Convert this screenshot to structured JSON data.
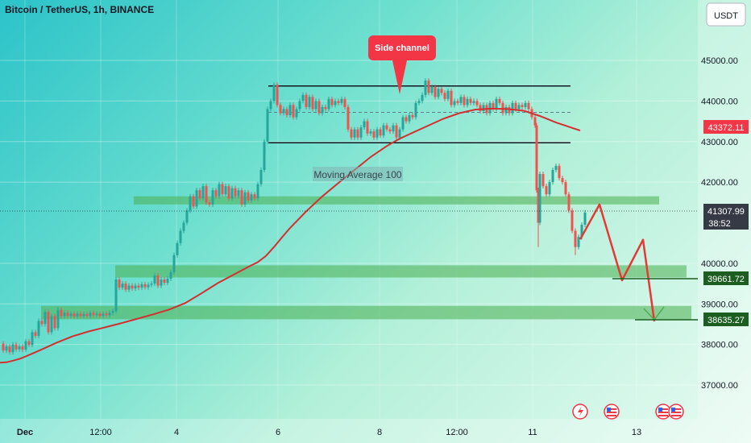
{
  "header": {
    "title": "Bitcoin / TetherUS, 1h, BINANCE",
    "currency_button": "USDT"
  },
  "chart_data": {
    "type": "candlestick",
    "title": "Bitcoin / TetherUS, 1h, BINANCE",
    "ylim": [
      36600,
      46300
    ],
    "y_ticks": [
      "45000.00",
      "44000.00",
      "43000.00",
      "42000.00",
      "40000.00",
      "39000.00",
      "38000.00",
      "37000.00"
    ],
    "x_ticks": [
      "Dec",
      "12:00",
      "4",
      "6",
      "8",
      "12:00",
      "11",
      "13"
    ],
    "series": [
      {
        "name": "Moving Average 100",
        "values": [
          [
            0,
            37550
          ],
          [
            8,
            37560
          ],
          [
            16,
            37600
          ],
          [
            25,
            37650
          ],
          [
            35,
            37730
          ],
          [
            50,
            37860
          ],
          [
            70,
            38040
          ],
          [
            90,
            38200
          ],
          [
            110,
            38320
          ],
          [
            130,
            38420
          ],
          [
            150,
            38520
          ],
          [
            170,
            38630
          ],
          [
            190,
            38740
          ],
          [
            210,
            38860
          ],
          [
            230,
            39020
          ],
          [
            250,
            39260
          ],
          [
            270,
            39510
          ],
          [
            290,
            39720
          ],
          [
            310,
            39930
          ],
          [
            320,
            40030
          ],
          [
            330,
            40180
          ],
          [
            340,
            40400
          ],
          [
            350,
            40640
          ],
          [
            360,
            40870
          ],
          [
            380,
            41280
          ],
          [
            400,
            41650
          ],
          [
            420,
            41980
          ],
          [
            440,
            42300
          ],
          [
            460,
            42620
          ],
          [
            480,
            42890
          ],
          [
            495,
            43060
          ],
          [
            510,
            43200
          ],
          [
            530,
            43380
          ],
          [
            550,
            43560
          ],
          [
            570,
            43700
          ],
          [
            590,
            43790
          ],
          [
            610,
            43810
          ],
          [
            630,
            43800
          ],
          [
            650,
            43760
          ],
          [
            670,
            43630
          ],
          [
            690,
            43470
          ],
          [
            720,
            43270
          ]
        ]
      },
      {
        "name": "projection",
        "values": [
          [
            720,
            40590
          ],
          [
            744,
            41450
          ],
          [
            772,
            39580
          ],
          [
            798,
            40580
          ],
          [
            812,
            38570
          ]
        ]
      }
    ],
    "price_levels": [
      "43372.11",
      "41307.99",
      "39661.72",
      "38635.27"
    ],
    "countdown": "38:52",
    "annotations": [
      "Side channel",
      "Moving Average 100"
    ],
    "zones": [
      {
        "range": [
          41450,
          41650
        ],
        "x": [
          166,
          818
        ]
      },
      {
        "range": [
          39650,
          39950
        ],
        "x": [
          143,
          852
        ]
      },
      {
        "range": [
          38620,
          38950
        ],
        "x": [
          51,
          858
        ]
      }
    ],
    "channel": {
      "upper": 44370,
      "lower": 42970,
      "mid": 43720,
      "x": [
        333,
        708
      ]
    },
    "candles_path": [
      [
        0,
        38020
      ],
      [
        4,
        37850
      ],
      [
        8,
        37950
      ],
      [
        12,
        37810
      ],
      [
        16,
        38000
      ],
      [
        20,
        37880
      ],
      [
        24,
        37950
      ],
      [
        28,
        37870
      ],
      [
        32,
        38080
      ],
      [
        36,
        37990
      ],
      [
        40,
        38300
      ],
      [
        44,
        38210
      ],
      [
        48,
        38580
      ],
      [
        52,
        38500
      ],
      [
        56,
        38800
      ],
      [
        60,
        38300
      ],
      [
        64,
        38700
      ],
      [
        68,
        38400
      ],
      [
        72,
        38850
      ],
      [
        76,
        38700
      ],
      [
        80,
        38780
      ],
      [
        84,
        38700
      ],
      [
        88,
        38760
      ],
      [
        92,
        38690
      ],
      [
        96,
        38760
      ],
      [
        100,
        38700
      ],
      [
        104,
        38750
      ],
      [
        108,
        38700
      ],
      [
        112,
        38780
      ],
      [
        116,
        38720
      ],
      [
        120,
        38760
      ],
      [
        124,
        38700
      ],
      [
        128,
        38760
      ],
      [
        132,
        38720
      ],
      [
        136,
        38780
      ],
      [
        140,
        38820
      ],
      [
        144,
        39600
      ],
      [
        148,
        39400
      ],
      [
        152,
        39500
      ],
      [
        156,
        39350
      ],
      [
        160,
        39450
      ],
      [
        164,
        39380
      ],
      [
        168,
        39450
      ],
      [
        172,
        39400
      ],
      [
        176,
        39480
      ],
      [
        180,
        39410
      ],
      [
        184,
        39470
      ],
      [
        188,
        39500
      ],
      [
        192,
        39700
      ],
      [
        196,
        39450
      ],
      [
        200,
        39600
      ],
      [
        204,
        39520
      ],
      [
        208,
        39620
      ],
      [
        212,
        39780
      ],
      [
        216,
        40200
      ],
      [
        220,
        40500
      ],
      [
        224,
        40800
      ],
      [
        228,
        41000
      ],
      [
        232,
        41300
      ],
      [
        236,
        41650
      ],
      [
        240,
        41400
      ],
      [
        244,
        41800
      ],
      [
        248,
        41600
      ],
      [
        252,
        41900
      ],
      [
        256,
        41500
      ],
      [
        260,
        41450
      ],
      [
        264,
        41800
      ],
      [
        268,
        41650
      ],
      [
        272,
        41950
      ],
      [
        276,
        41700
      ],
      [
        280,
        41900
      ],
      [
        284,
        41600
      ],
      [
        288,
        41850
      ],
      [
        292,
        41650
      ],
      [
        296,
        41800
      ],
      [
        300,
        41450
      ],
      [
        304,
        41750
      ],
      [
        308,
        41550
      ],
      [
        312,
        41700
      ],
      [
        316,
        41600
      ],
      [
        320,
        41950
      ],
      [
        324,
        42300
      ],
      [
        328,
        43000
      ],
      [
        332,
        43800
      ],
      [
        336,
        44000
      ],
      [
        340,
        44400
      ],
      [
        344,
        43900
      ],
      [
        348,
        43700
      ],
      [
        352,
        43800
      ],
      [
        356,
        43650
      ],
      [
        360,
        43900
      ],
      [
        364,
        43600
      ],
      [
        368,
        43800
      ],
      [
        372,
        44000
      ],
      [
        376,
        44150
      ],
      [
        380,
        43850
      ],
      [
        384,
        44100
      ],
      [
        388,
        43800
      ],
      [
        392,
        44000
      ],
      [
        396,
        43700
      ],
      [
        400,
        43850
      ],
      [
        404,
        43800
      ],
      [
        408,
        44050
      ],
      [
        412,
        43900
      ],
      [
        416,
        44000
      ],
      [
        420,
        43950
      ],
      [
        424,
        44050
      ],
      [
        428,
        43850
      ],
      [
        432,
        43300
      ],
      [
        436,
        43100
      ],
      [
        440,
        43300
      ],
      [
        444,
        43100
      ],
      [
        448,
        43350
      ],
      [
        452,
        43500
      ],
      [
        456,
        43200
      ],
      [
        460,
        43250
      ],
      [
        464,
        43100
      ],
      [
        468,
        43300
      ],
      [
        472,
        43150
      ],
      [
        476,
        43400
      ],
      [
        480,
        43300
      ],
      [
        484,
        43250
      ],
      [
        488,
        43400
      ],
      [
        492,
        43100
      ],
      [
        496,
        43300
      ],
      [
        500,
        43600
      ],
      [
        504,
        43500
      ],
      [
        508,
        43650
      ],
      [
        512,
        43600
      ],
      [
        516,
        43950
      ],
      [
        520,
        44000
      ],
      [
        524,
        44150
      ],
      [
        528,
        44500
      ],
      [
        532,
        44200
      ],
      [
        536,
        44350
      ],
      [
        540,
        44100
      ],
      [
        544,
        44300
      ],
      [
        548,
        44200
      ],
      [
        552,
        44050
      ],
      [
        556,
        44250
      ],
      [
        560,
        43900
      ],
      [
        564,
        44000
      ],
      [
        568,
        43950
      ],
      [
        572,
        44100
      ],
      [
        576,
        43900
      ],
      [
        580,
        44050
      ],
      [
        584,
        43950
      ],
      [
        588,
        44000
      ],
      [
        592,
        43900
      ],
      [
        596,
        43750
      ],
      [
        600,
        43900
      ],
      [
        604,
        43700
      ],
      [
        608,
        43950
      ],
      [
        612,
        43800
      ],
      [
        616,
        44050
      ],
      [
        620,
        43950
      ],
      [
        624,
        43700
      ],
      [
        628,
        43850
      ],
      [
        632,
        43700
      ],
      [
        636,
        43950
      ],
      [
        640,
        43800
      ],
      [
        644,
        43900
      ],
      [
        648,
        43850
      ],
      [
        652,
        43950
      ],
      [
        656,
        43800
      ],
      [
        660,
        43600
      ],
      [
        664,
        43400
      ],
      [
        666,
        41800
      ],
      [
        668,
        41000
      ],
      [
        670,
        42200
      ],
      [
        674,
        41900
      ],
      [
        678,
        41700
      ],
      [
        682,
        42000
      ],
      [
        686,
        42300
      ],
      [
        690,
        42400
      ],
      [
        694,
        42100
      ],
      [
        698,
        42000
      ],
      [
        702,
        41700
      ],
      [
        706,
        41300
      ],
      [
        710,
        40800
      ],
      [
        714,
        40400
      ],
      [
        718,
        40650
      ],
      [
        722,
        40950
      ],
      [
        726,
        41250
      ]
    ]
  }
}
